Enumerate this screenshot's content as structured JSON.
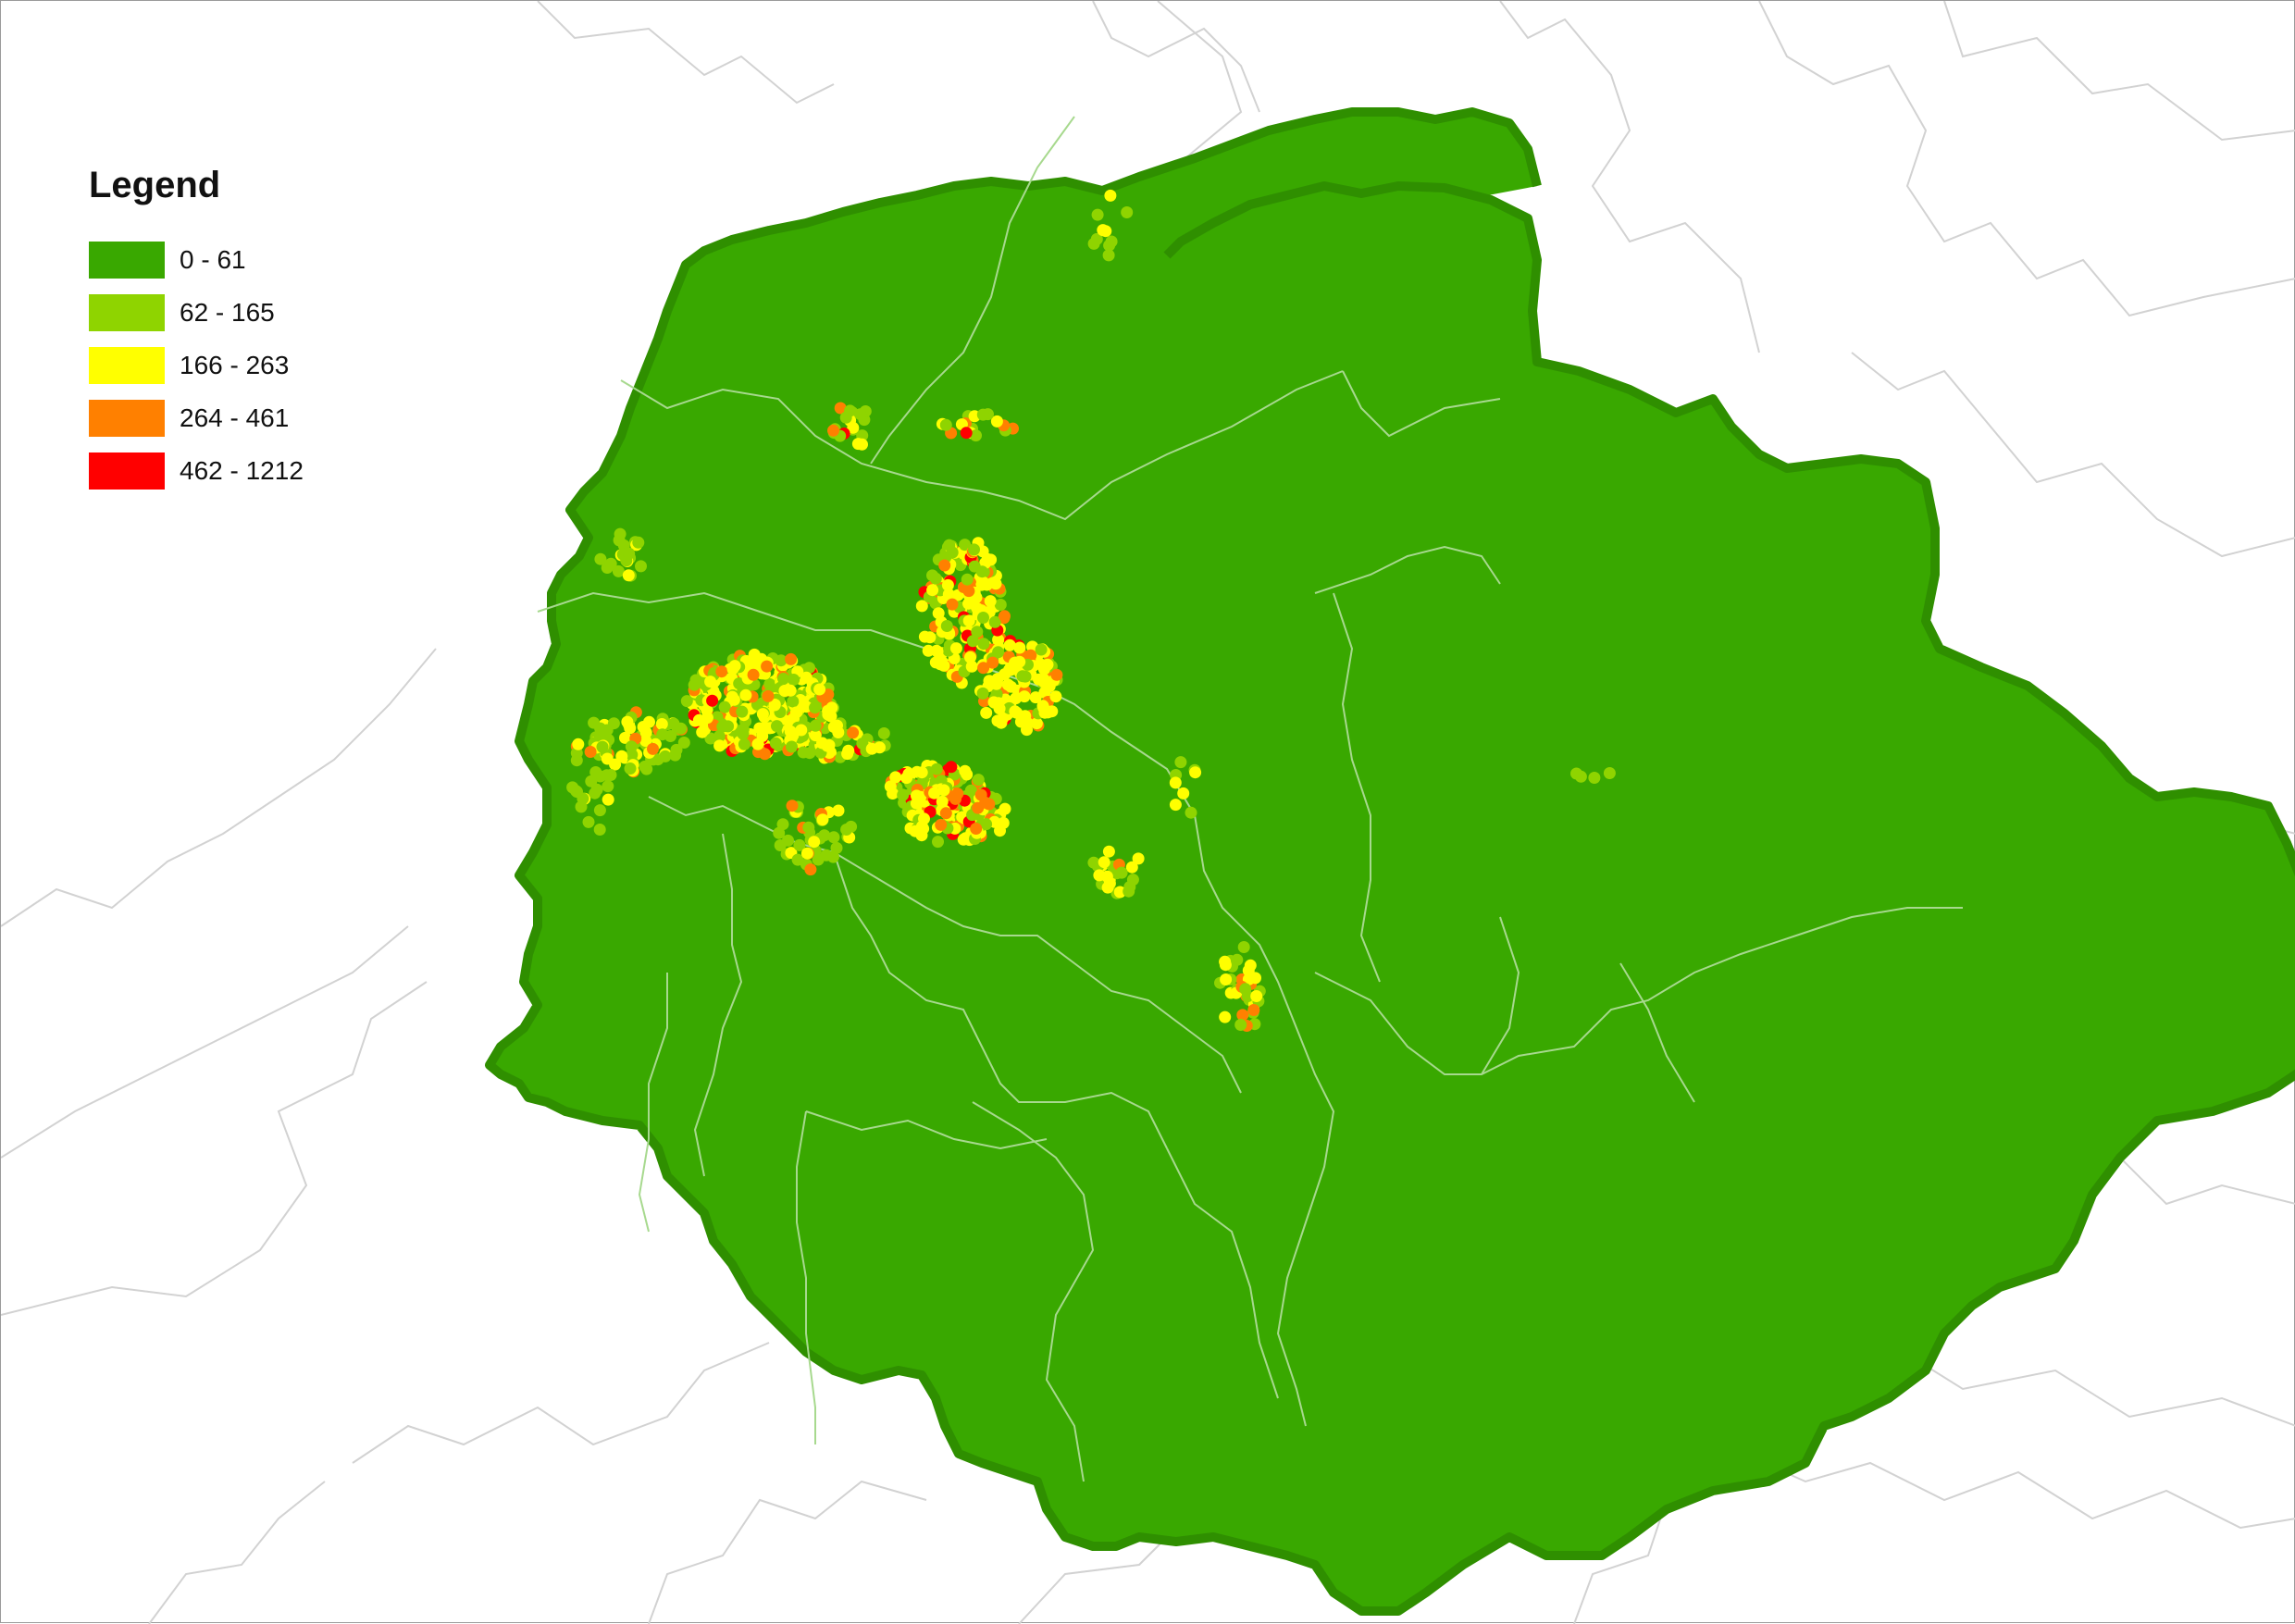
{
  "legend": {
    "title": "Legend",
    "classes": [
      {
        "label": "0 - 61",
        "color": "#39a800"
      },
      {
        "label": "62 - 165",
        "color": "#8fd400"
      },
      {
        "label": "166 - 263",
        "color": "#ffff00"
      },
      {
        "label": "264 - 461",
        "color": "#ff8000"
      },
      {
        "label": "462 - 1212",
        "color": "#ff0000"
      }
    ]
  },
  "map": {
    "background_color": "#ffffff",
    "boundary_color": "#d2d2d2",
    "inner_boundary_color": "#9fd68a",
    "base_fill_color": "#39a800"
  }
}
